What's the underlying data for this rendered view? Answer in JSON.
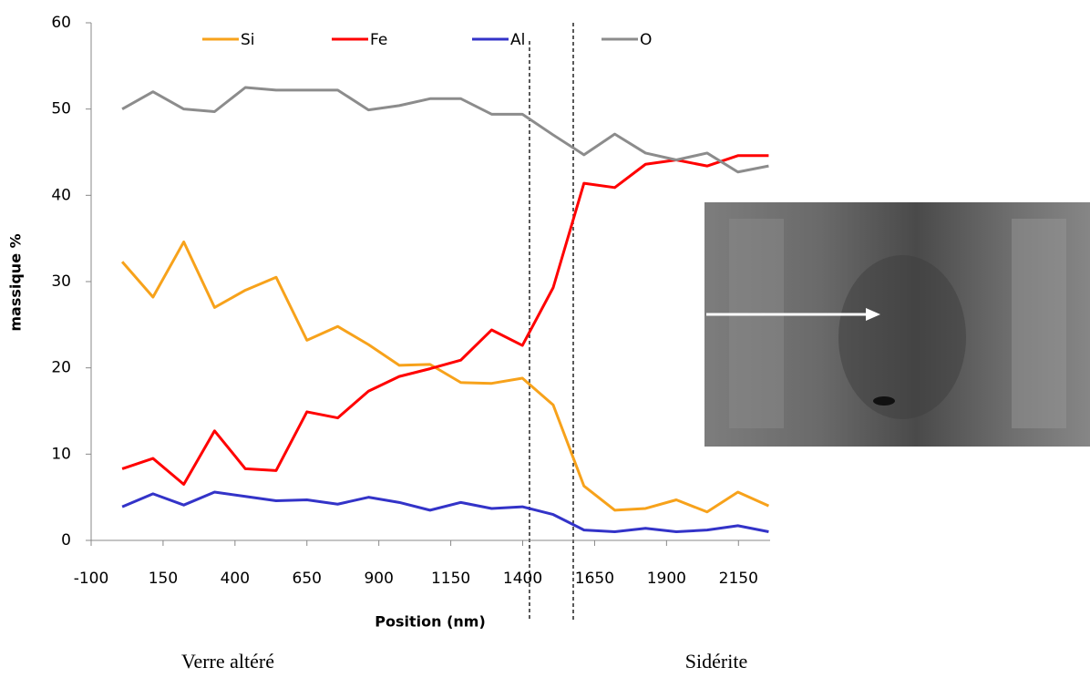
{
  "chart_data": {
    "type": "line",
    "y_label": "massique %",
    "x_label": "Position (nm)",
    "annotations": [
      "Verre altéré",
      "Sidérite"
    ],
    "x": [
      8,
      115,
      222,
      329,
      436,
      543,
      650,
      757,
      864,
      971,
      1078,
      1185,
      1292,
      1399,
      1506,
      1613,
      1720,
      1827,
      1934,
      2041,
      2148,
      2255
    ],
    "xlim": [
      -100,
      2260
    ],
    "xticks": [
      -100,
      150,
      400,
      650,
      900,
      1150,
      1400,
      1650,
      1900,
      2150
    ],
    "ylim": [
      0,
      60
    ],
    "yticks": [
      0,
      10,
      20,
      30,
      40,
      50,
      60
    ],
    "grid": false,
    "legend": "top",
    "series": [
      {
        "name": "Si",
        "color": "#f7a21b",
        "values": [
          32.3,
          28.2,
          34.6,
          27,
          29,
          30.5,
          23.2,
          24.8,
          22.7,
          20.3,
          20.4,
          18.3,
          18.2,
          18.8,
          15.7,
          6.3,
          3.5,
          3.7,
          4.7,
          3.3,
          5.6,
          4.0
        ]
      },
      {
        "name": "Fe",
        "color": "#ff0000",
        "values": [
          8.3,
          9.5,
          6.5,
          12.7,
          8.3,
          8.1,
          14.9,
          14.2,
          17.3,
          19,
          19.9,
          20.9,
          24.4,
          22.6,
          29.3,
          41.4,
          40.9,
          43.6,
          44.1,
          43.4,
          44.6,
          44.6
        ]
      },
      {
        "name": "Al",
        "color": "#3333c8",
        "values": [
          3.9,
          5.4,
          4.1,
          5.6,
          5.1,
          4.6,
          4.7,
          4.2,
          5.0,
          4.4,
          3.5,
          4.4,
          3.7,
          3.9,
          3.0,
          1.2,
          1.0,
          1.4,
          1.0,
          1.2,
          1.7,
          1.0
        ]
      },
      {
        "name": "O",
        "color": "#8c8c8c",
        "values": [
          50,
          52,
          50,
          49.7,
          52.5,
          52.2,
          52.2,
          52.2,
          49.9,
          50.4,
          51.2,
          51.2,
          49.4,
          49.4,
          47,
          44.7,
          47.1,
          44.9,
          44.1,
          44.9,
          42.7,
          43.4
        ]
      }
    ]
  }
}
